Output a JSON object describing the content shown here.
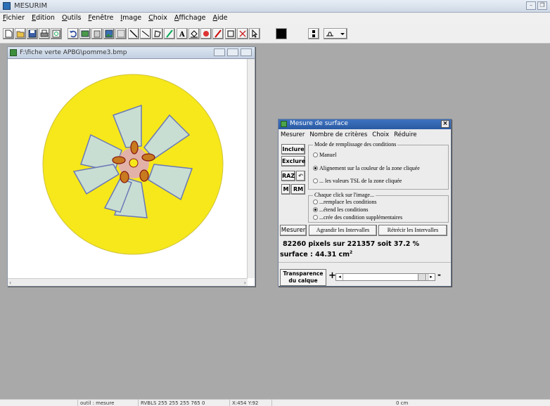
{
  "app": {
    "title": "MESURIM"
  },
  "menubar": {
    "items": [
      "Fichier",
      "Edition",
      "Outils",
      "Fenêtre",
      "Image",
      "Choix",
      "Affichage",
      "Aide"
    ]
  },
  "toolbar": {
    "icons": [
      "new-icon",
      "open-icon",
      "save-icon",
      "print-icon",
      "preview-icon",
      "undo-icon",
      "copy-image-icon",
      "paste-image-icon",
      "image-icon",
      "grid-icon",
      "line-icon",
      "diagonal-icon",
      "polygon-icon",
      "brush-icon",
      "text-icon",
      "fill-icon",
      "color-picker-icon",
      "pen-icon",
      "rectangle-icon",
      "zoom-icon",
      "cursor-icon",
      "color-swatch",
      "scale-icon",
      "dropdown-tool-icon"
    ],
    "current_color": "#000000"
  },
  "image_window": {
    "title": "F:\\fiche verte APBG\\pomme3.bmp",
    "colors": {
      "disc": "#f6e81a",
      "petal": "#c9ded2",
      "center": "#c87a1e"
    }
  },
  "dialog": {
    "title": "Mesure de surface",
    "menu": [
      "Mesurer",
      "Nombre de critères",
      "Choix",
      "Réduire"
    ],
    "buttons": {
      "inclure": "Inclure",
      "exclure": "Exclure",
      "raz": "RAZ",
      "undo": "↶",
      "m": "M",
      "rm": "RM",
      "mesurer": "Mesurer",
      "agrandir": "Agrandir les Intervalles",
      "retrecir": "Rétrécir les Intervalles"
    },
    "group1": {
      "title": "Mode de remplissage des conditions",
      "options": [
        {
          "label": "Manuel",
          "selected": false
        },
        {
          "label": "Alignement sur la couleur de la zone cliquée",
          "selected": true
        },
        {
          "label": "... les valeurs TSL de la zone cliquée",
          "selected": false
        }
      ]
    },
    "group2": {
      "title": "Chaque click sur l'image...",
      "options": [
        {
          "label": "...remplace les conditions",
          "selected": false
        },
        {
          "label": "...étend les conditions",
          "selected": true
        },
        {
          "label": "...crée des condition supplémentaires",
          "selected": false
        }
      ]
    },
    "result_line1": "82260 pixels sur 221357 soit 37.2 %",
    "result_line2_prefix": "surface : 44.31 cm",
    "result_line2_sup": "2",
    "transparence_line1": "Transparence",
    "transparence_line2": "du calque",
    "plus_label": "+",
    "minus_label": "-"
  },
  "statusbar": {
    "tool": "outil : mesure",
    "rgb": "RVBLS 255 255 255 765 0",
    "coords": "X:454 Y:92",
    "length": "0 cm"
  }
}
